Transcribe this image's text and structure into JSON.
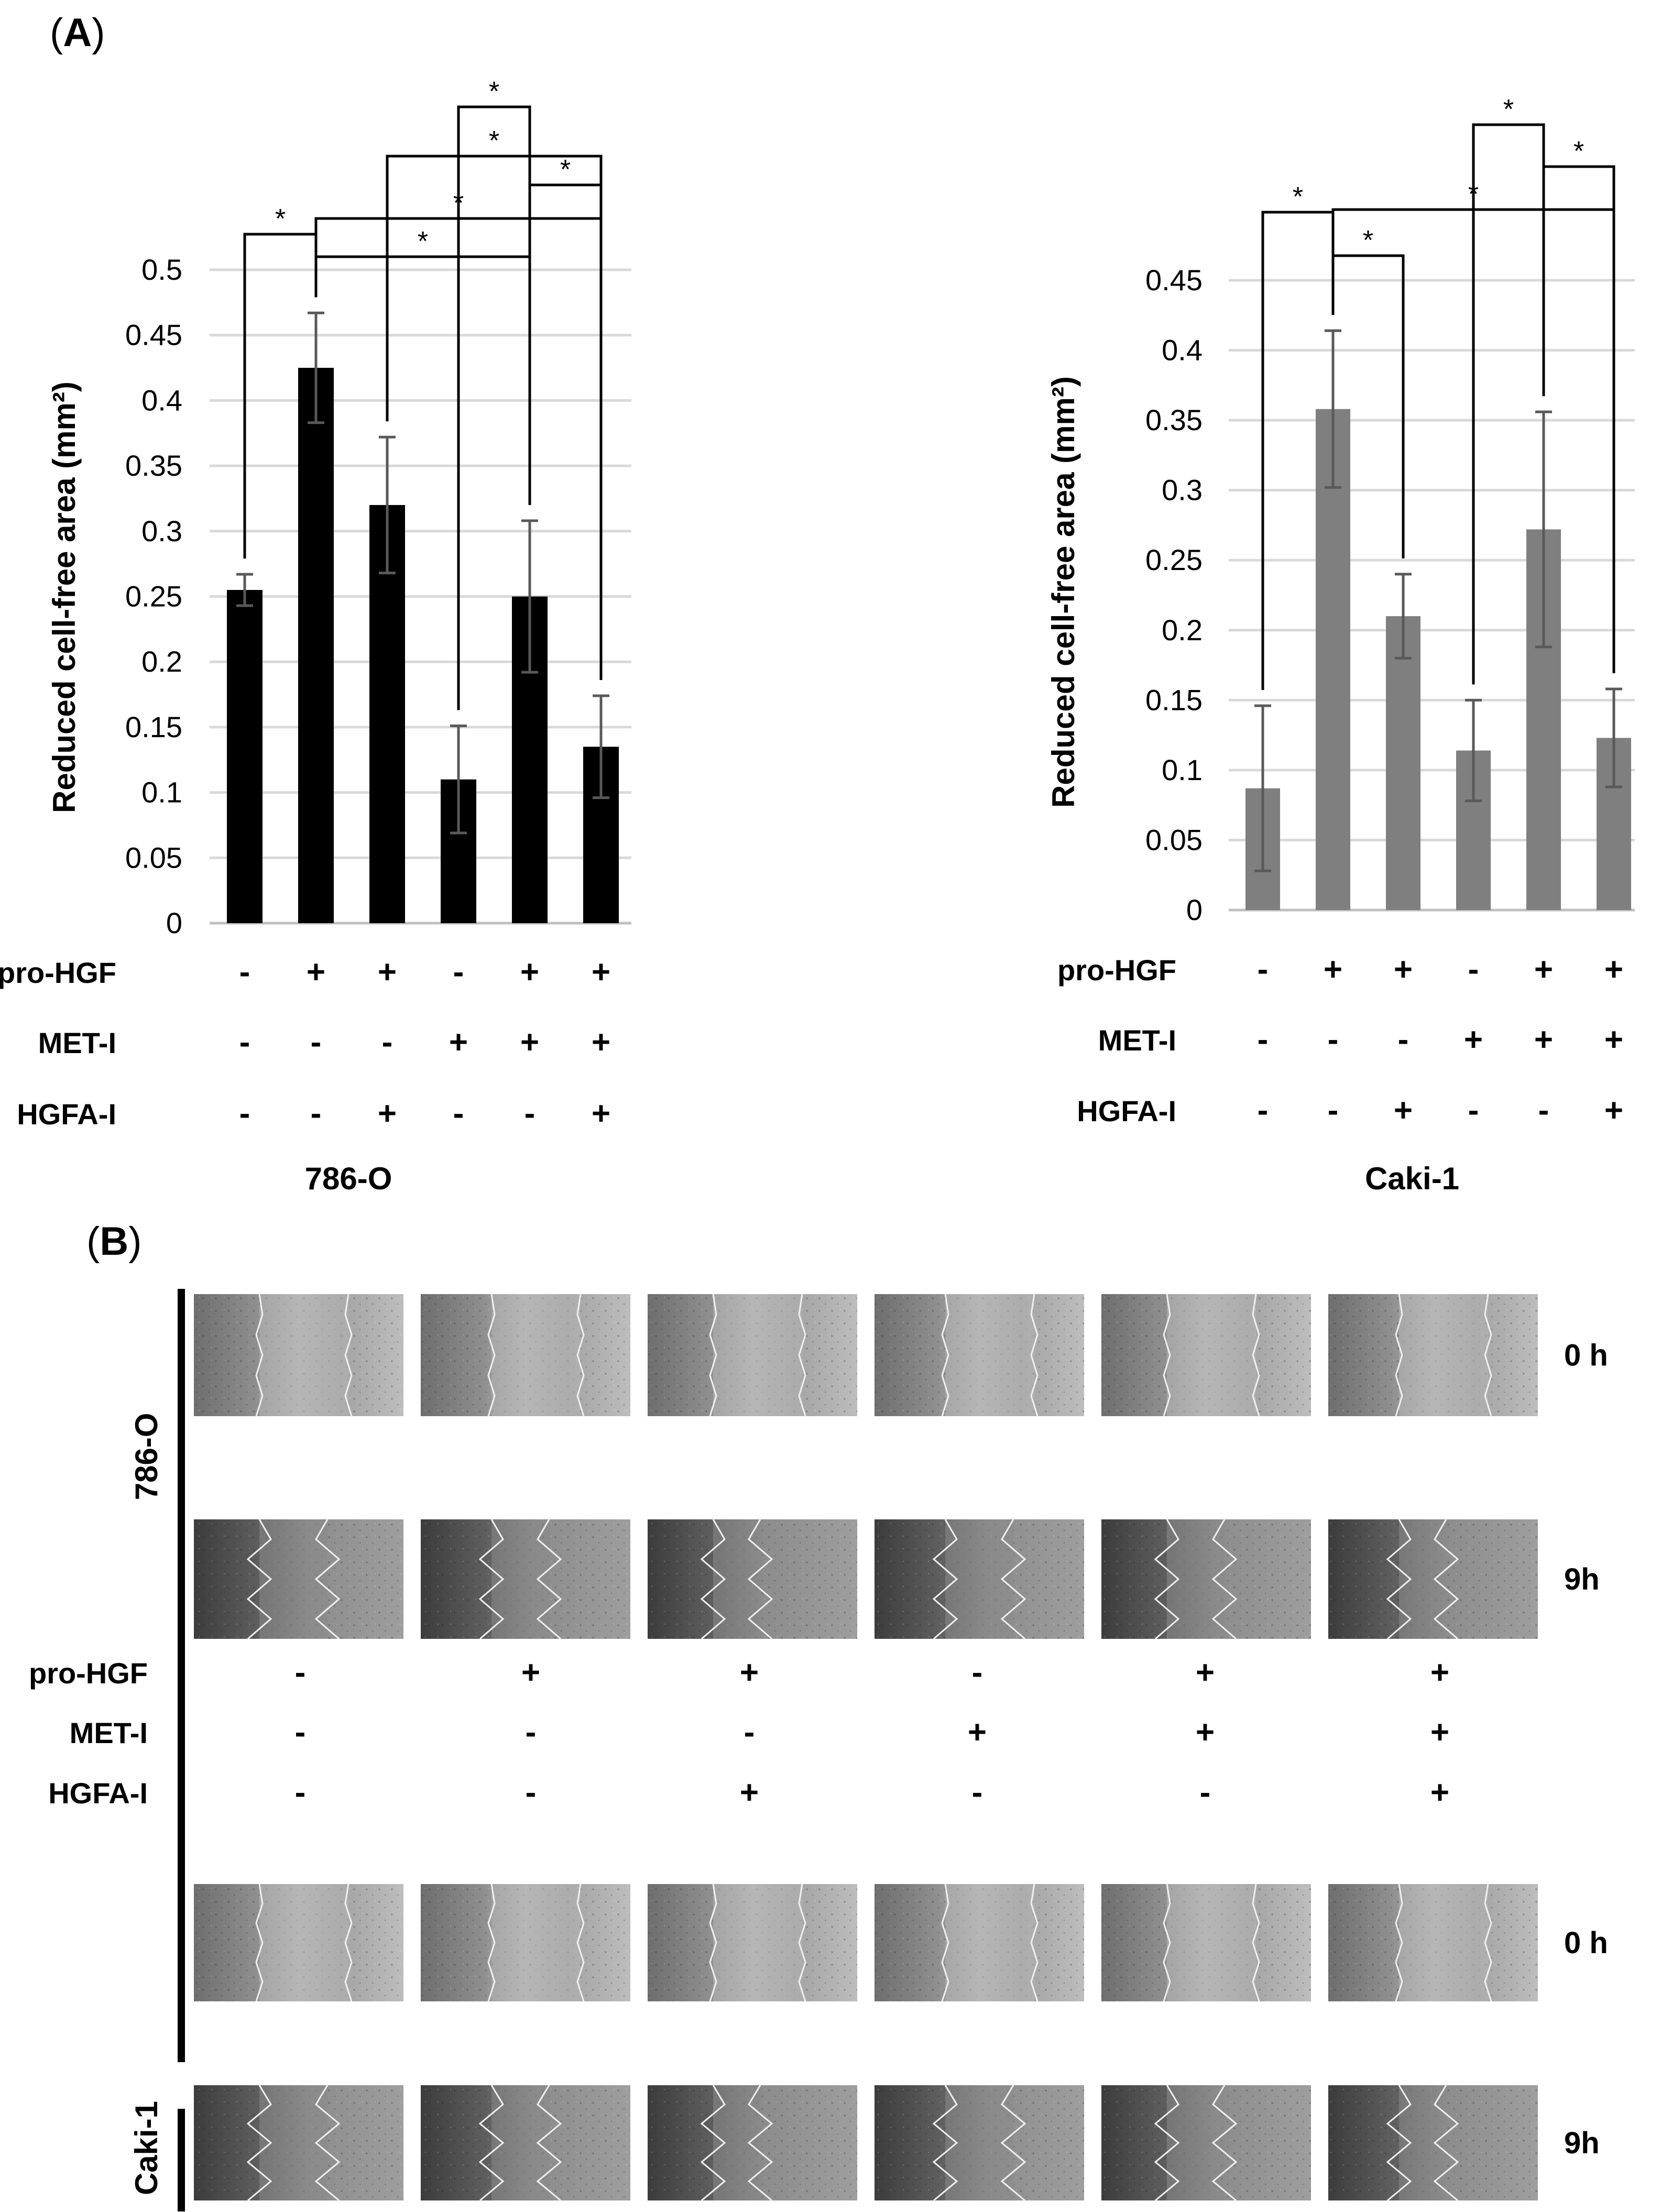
{
  "panel_labels": {
    "a": "A",
    "b": "B"
  },
  "treatments": [
    "pro-HGF",
    "MET-I",
    "HGFA-I"
  ],
  "chart_data": [
    {
      "type": "bar",
      "cell_line": "786-O",
      "ylabel": "Reduced cell-free area (mm²)",
      "ylim": [
        0,
        0.5
      ],
      "yticks": [
        "0",
        "0.05",
        "0.1",
        "0.15",
        "0.2",
        "0.25",
        "0.3",
        "0.35",
        "0.4",
        "0.45",
        "0.5"
      ],
      "bar_color": "#000000",
      "values": [
        0.255,
        0.425,
        0.32,
        0.11,
        0.25,
        0.135
      ],
      "errors": [
        0.012,
        0.042,
        0.052,
        0.041,
        0.058,
        0.039
      ],
      "conditions": [
        [
          "-",
          "+",
          "+",
          "-",
          "+",
          "+"
        ],
        [
          "-",
          "-",
          "-",
          "+",
          "+",
          "+"
        ],
        [
          "-",
          "-",
          "+",
          "-",
          "-",
          "+"
        ]
      ],
      "significance": [
        {
          "from": 0,
          "to": 1,
          "label": "*"
        },
        {
          "from": 1,
          "to": 4,
          "label": "*"
        },
        {
          "from": 1,
          "to": 5,
          "label": "*"
        },
        {
          "from": 2,
          "to": 5,
          "label": "*"
        },
        {
          "from": 3,
          "to": 4,
          "label": "*"
        },
        {
          "from": 4,
          "to": 5,
          "label": "*"
        }
      ]
    },
    {
      "type": "bar",
      "cell_line": "Caki-1",
      "ylabel": "Reduced cell-free area (mm²)",
      "ylim": [
        0,
        0.45
      ],
      "yticks": [
        "0",
        "0.05",
        "0.1",
        "0.15",
        "0.2",
        "0.25",
        "0.3",
        "0.35",
        "0.4",
        "0.45"
      ],
      "bar_color": "#7f7f7f",
      "values": [
        0.087,
        0.358,
        0.21,
        0.114,
        0.272,
        0.123
      ],
      "errors": [
        0.059,
        0.056,
        0.03,
        0.036,
        0.084,
        0.035
      ],
      "conditions": [
        [
          "-",
          "+",
          "+",
          "-",
          "+",
          "+"
        ],
        [
          "-",
          "-",
          "-",
          "+",
          "+",
          "+"
        ],
        [
          "-",
          "-",
          "+",
          "-",
          "-",
          "+"
        ]
      ],
      "significance": [
        {
          "from": 0,
          "to": 1,
          "label": "*"
        },
        {
          "from": 1,
          "to": 2,
          "label": "*"
        },
        {
          "from": 1,
          "to": 5,
          "label": "*"
        },
        {
          "from": 3,
          "to": 4,
          "label": "*"
        },
        {
          "from": 4,
          "to": 5,
          "label": "*"
        }
      ]
    }
  ],
  "micrographs": {
    "cell_lines": [
      "786-O",
      "Caki-1"
    ],
    "timepoints": [
      "0 h",
      "9h"
    ],
    "conditions": [
      [
        "-",
        "+",
        "+",
        "-",
        "+",
        "+"
      ],
      [
        "-",
        "-",
        "-",
        "+",
        "+",
        "+"
      ],
      [
        "-",
        "-",
        "+",
        "-",
        "-",
        "+"
      ]
    ]
  }
}
